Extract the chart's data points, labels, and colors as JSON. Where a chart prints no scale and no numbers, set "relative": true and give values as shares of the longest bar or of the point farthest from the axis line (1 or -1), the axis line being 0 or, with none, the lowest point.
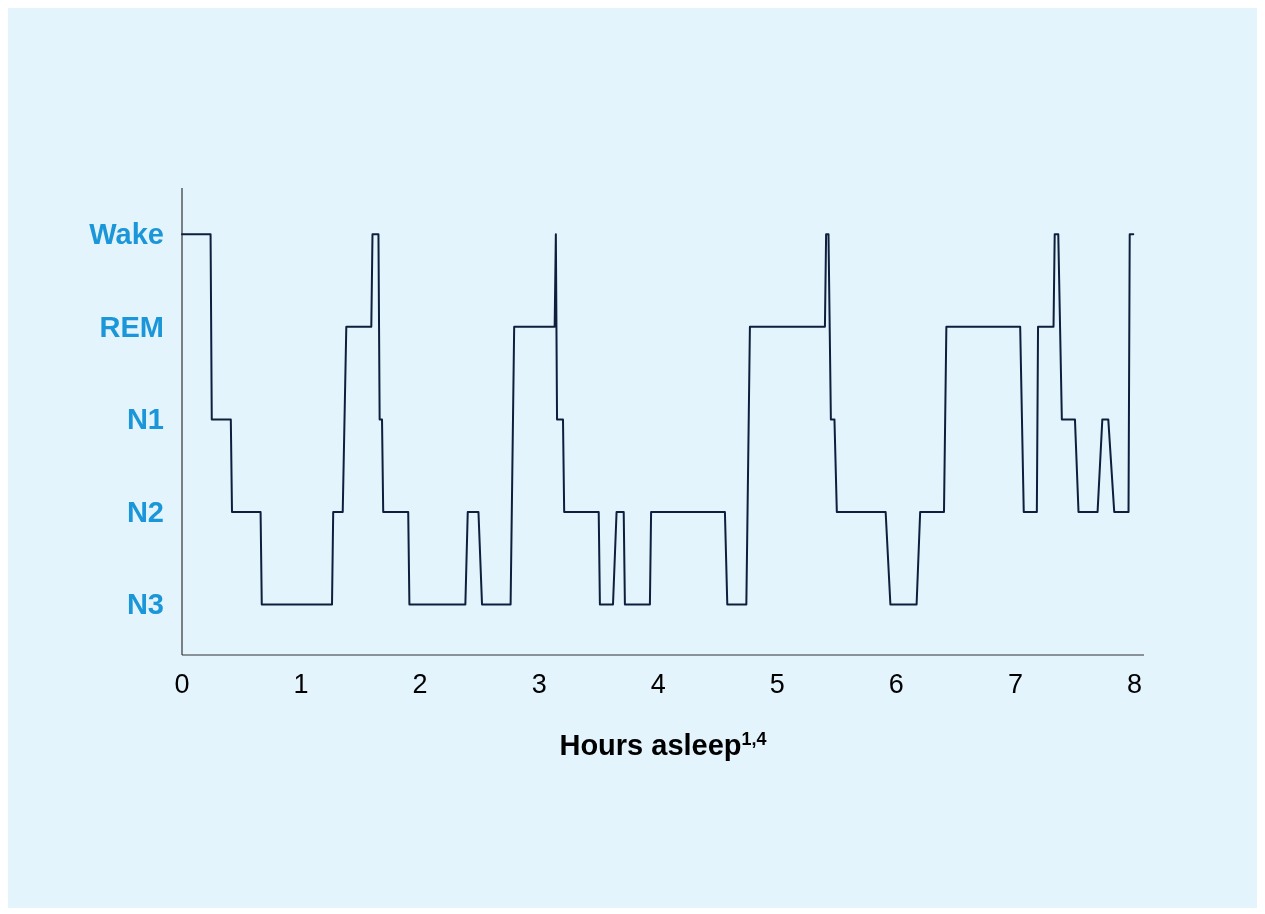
{
  "chart_data": {
    "type": "line",
    "relative": true,
    "xlabel": "Hours asleep$^{1,4}$",
    "xlim": [
      0,
      8.08
    ],
    "xticks": [
      0,
      1,
      2,
      3,
      4,
      5,
      6,
      7,
      8
    ],
    "annotations": [
      "Wake",
      "REM",
      "N1",
      "N2",
      "N3"
    ],
    "grid": false,
    "marker": "none",
    "line_style": "solid",
    "series": [
      {
        "color": "#0d1f3c",
        "x": [
          0,
          0.24,
          0.25,
          0.41,
          0.42,
          0.66,
          0.67,
          1.26,
          1.27,
          1.35,
          1.38,
          1.59,
          1.6,
          1.65,
          1.66,
          1.68,
          1.69,
          1.9,
          1.91,
          2.38,
          2.4,
          2.49,
          2.52,
          2.76,
          2.79,
          3.13,
          3.14,
          3.15,
          3.2,
          3.21,
          3.5,
          3.51,
          3.62,
          3.65,
          3.71,
          3.72,
          3.93,
          3.94,
          4.56,
          4.58,
          4.74,
          4.77,
          5.4,
          5.41,
          5.43,
          5.45,
          5.48,
          5.5,
          5.91,
          5.95,
          6.17,
          6.2,
          6.4,
          6.42,
          7.04,
          7.07,
          7.18,
          7.19,
          7.32,
          7.33,
          7.36,
          7.39,
          7.5,
          7.53,
          7.69,
          7.73,
          7.78,
          7.83,
          7.95,
          7.96,
          7.99
        ],
        "values": [
          1,
          1,
          0.56,
          0.56,
          0.34,
          0.34,
          0.12,
          0.12,
          0.34,
          0.34,
          0.78,
          0.78,
          1,
          1,
          0.56,
          0.56,
          0.34,
          0.34,
          0.12,
          0.12,
          0.34,
          0.34,
          0.12,
          0.12,
          0.78,
          0.78,
          1,
          0.56,
          0.56,
          0.34,
          0.34,
          0.12,
          0.12,
          0.34,
          0.34,
          0.12,
          0.12,
          0.34,
          0.34,
          0.12,
          0.12,
          0.78,
          0.78,
          1,
          1,
          0.56,
          0.56,
          0.34,
          0.34,
          0.12,
          0.12,
          0.34,
          0.34,
          0.78,
          0.78,
          0.34,
          0.34,
          0.78,
          0.78,
          1,
          1,
          0.56,
          0.56,
          0.34,
          0.34,
          0.56,
          0.56,
          0.34,
          0.34,
          1,
          1
        ]
      }
    ]
  }
}
